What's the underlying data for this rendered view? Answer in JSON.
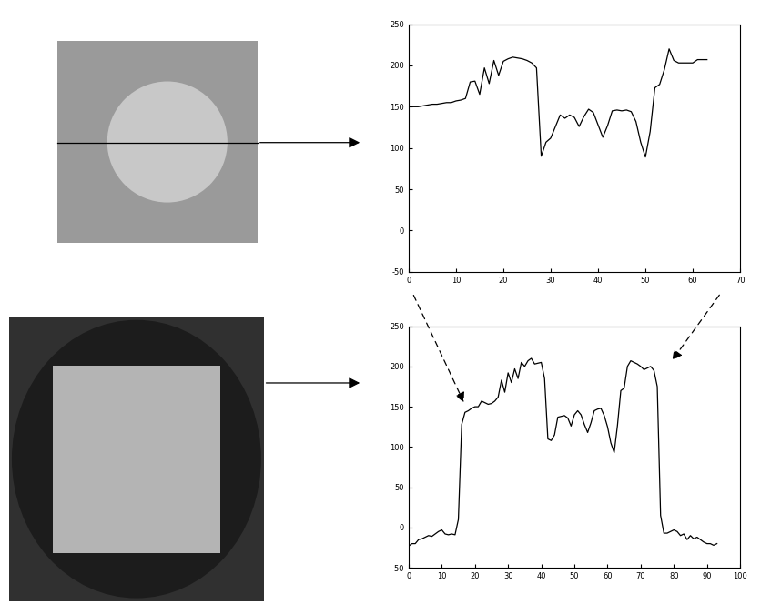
{
  "chart_data": [
    {
      "type": "line",
      "color": "#000000",
      "x": [
        0,
        1,
        2,
        3,
        4,
        5,
        6,
        7,
        8,
        9,
        10,
        11,
        12,
        13,
        14,
        15,
        16,
        17,
        18,
        19,
        20,
        21,
        22,
        23,
        24,
        25,
        26,
        27,
        28,
        29,
        30,
        31,
        32,
        33,
        34,
        35,
        36,
        37,
        38,
        39,
        40,
        41,
        42,
        43,
        44,
        45,
        46,
        47,
        48,
        49,
        50,
        51,
        52,
        53,
        54,
        55,
        56,
        57,
        58,
        59,
        60,
        61,
        62,
        63
      ],
      "values": [
        150,
        150,
        150,
        151,
        152,
        153,
        153,
        154,
        155,
        155,
        157,
        158,
        160,
        180,
        181,
        165,
        197,
        178,
        206,
        188,
        205,
        208,
        210,
        209,
        208,
        206,
        203,
        197,
        90,
        107,
        112,
        126,
        140,
        136,
        140,
        137,
        126,
        138,
        147,
        143,
        128,
        113,
        127,
        145,
        146,
        145,
        146,
        144,
        132,
        107,
        89,
        120,
        173,
        177,
        195,
        220,
        206,
        203,
        203,
        203,
        203,
        207,
        207,
        207
      ],
      "xlim": [
        0,
        70
      ],
      "ylim": [
        -50,
        250
      ],
      "xticks": [
        0,
        10,
        20,
        30,
        40,
        50,
        60,
        70
      ],
      "yticks": [
        -50,
        0,
        50,
        100,
        150,
        200,
        250
      ]
    },
    {
      "type": "line",
      "color": "#000000",
      "x": [
        0,
        1,
        2,
        3,
        4,
        5,
        6,
        7,
        8,
        9,
        10,
        11,
        12,
        13,
        14,
        15,
        16,
        17,
        18,
        19,
        20,
        21,
        22,
        23,
        24,
        25,
        26,
        27,
        28,
        29,
        30,
        31,
        32,
        33,
        34,
        35,
        36,
        37,
        38,
        39,
        40,
        41,
        42,
        43,
        44,
        45,
        46,
        47,
        48,
        49,
        50,
        51,
        52,
        53,
        54,
        55,
        56,
        57,
        58,
        59,
        60,
        61,
        62,
        63,
        64,
        65,
        66,
        67,
        68,
        69,
        70,
        71,
        72,
        73,
        74,
        75,
        76,
        77,
        78,
        79,
        80,
        81,
        82,
        83,
        84,
        85,
        86,
        87,
        88,
        89,
        90,
        91,
        92,
        93
      ],
      "values": [
        -23,
        -20,
        -20,
        -15,
        -14,
        -12,
        -10,
        -11,
        -8,
        -5,
        -3,
        -8,
        -9,
        -8,
        -9,
        10,
        128,
        143,
        145,
        148,
        150,
        150,
        157,
        155,
        153,
        154,
        157,
        162,
        183,
        168,
        192,
        180,
        197,
        185,
        205,
        200,
        207,
        210,
        203,
        204,
        205,
        185,
        110,
        108,
        115,
        137,
        138,
        139,
        136,
        126,
        140,
        145,
        140,
        128,
        118,
        130,
        145,
        147,
        148,
        139,
        125,
        105,
        93,
        127,
        170,
        173,
        200,
        207,
        205,
        203,
        200,
        196,
        198,
        200,
        195,
        175,
        15,
        -7,
        -7,
        -5,
        -3,
        -5,
        -10,
        -8,
        -15,
        -10,
        -14,
        -12,
        -15,
        -18,
        -20,
        -20,
        -22,
        -20
      ],
      "xlim": [
        0,
        100
      ],
      "ylim": [
        -50,
        250
      ],
      "xticks": [
        0,
        10,
        20,
        30,
        40,
        50,
        60,
        70,
        80,
        90,
        100
      ],
      "yticks": [
        -50,
        0,
        50,
        100,
        150,
        200,
        250
      ]
    }
  ]
}
